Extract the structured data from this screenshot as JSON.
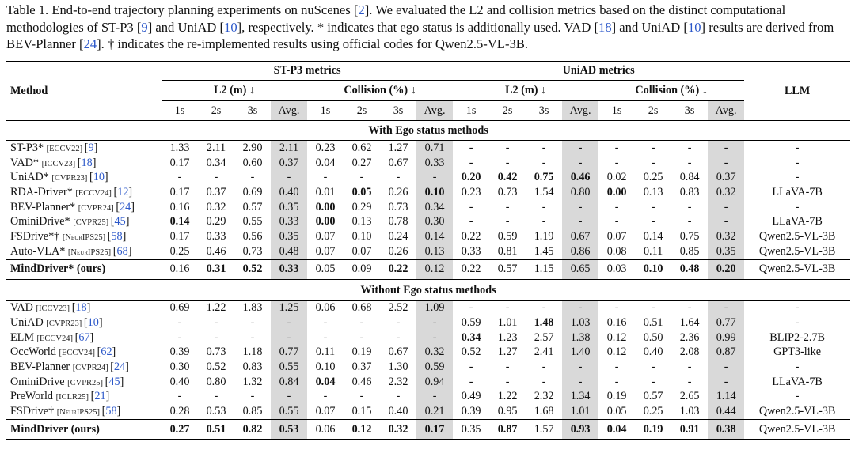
{
  "caption": {
    "parts": [
      {
        "t": "Table 1.  End-to-end trajectory planning experiments on nuScenes ["
      },
      {
        "t": "2",
        "hl": true
      },
      {
        "t": "].  We evaluated the L2 and collision metrics based on the distinct computational methodologies of ST-P3 ["
      },
      {
        "t": "9",
        "hl": true
      },
      {
        "t": "] and UniAD ["
      },
      {
        "t": "10",
        "hl": true
      },
      {
        "t": "], respectively. * indicates that ego status is additionally used.  VAD ["
      },
      {
        "t": "18",
        "hl": true
      },
      {
        "t": "] and UniAD ["
      },
      {
        "t": "10",
        "hl": true
      },
      {
        "t": "] results are derived from BEV-Planner ["
      },
      {
        "t": "24",
        "hl": true
      },
      {
        "t": "]. † indicates the re-implemented results using official codes for Qwen2.5-VL-3B."
      }
    ]
  },
  "header": {
    "method": "Method",
    "llm": "LLM",
    "stp3": "ST-P3 metrics",
    "uniad": "UniAD metrics",
    "l2": "L2 (m) ↓",
    "collision": "Collision (%) ↓",
    "cols": [
      "1s",
      "2s",
      "3s",
      "Avg.",
      "1s",
      "2s",
      "3s",
      "Avg.",
      "1s",
      "2s",
      "3s",
      "Avg.",
      "1s",
      "2s",
      "3s",
      "Avg."
    ]
  },
  "sections": [
    {
      "title": "With Ego status methods",
      "rows": [
        {
          "name": "ST-P3*",
          "venue": "[ECCV22]",
          "ref": "9",
          "vals": [
            "1.33",
            "2.11",
            "2.90",
            "2.11",
            "0.23",
            "0.62",
            "1.27",
            "0.71",
            "-",
            "-",
            "-",
            "-",
            "-",
            "-",
            "-",
            "-"
          ],
          "bold": [],
          "llm": "-"
        },
        {
          "name": "VAD*",
          "venue": "[ICCV23]",
          "ref": "18",
          "vals": [
            "0.17",
            "0.34",
            "0.60",
            "0.37",
            "0.04",
            "0.27",
            "0.67",
            "0.33",
            "-",
            "-",
            "-",
            "-",
            "-",
            "-",
            "-",
            "-"
          ],
          "bold": [],
          "llm": "-"
        },
        {
          "name": "UniAD*",
          "venue": "[CVPR23]",
          "ref": "10",
          "vals": [
            "-",
            "-",
            "-",
            "-",
            "-",
            "-",
            "-",
            "-",
            "0.20",
            "0.42",
            "0.75",
            "0.46",
            "0.02",
            "0.25",
            "0.84",
            "0.37"
          ],
          "bold": [
            8,
            9,
            10,
            11
          ],
          "llm": "-"
        },
        {
          "name": "RDA-Driver*",
          "venue": "[ECCV24]",
          "ref": "12",
          "vals": [
            "0.17",
            "0.37",
            "0.69",
            "0.40",
            "0.01",
            "0.05",
            "0.26",
            "0.10",
            "0.23",
            "0.73",
            "1.54",
            "0.80",
            "0.00",
            "0.13",
            "0.83",
            "0.32"
          ],
          "bold": [
            5,
            7,
            12
          ],
          "llm": "LLaVA-7B"
        },
        {
          "name": "BEV-Planner*",
          "venue": "[CVPR24]",
          "ref": "24",
          "vals": [
            "0.16",
            "0.32",
            "0.57",
            "0.35",
            "0.00",
            "0.29",
            "0.73",
            "0.34",
            "-",
            "-",
            "-",
            "-",
            "-",
            "-",
            "-",
            "-"
          ],
          "bold": [
            4
          ],
          "llm": "-"
        },
        {
          "name": "OminiDrive*",
          "venue": "[CVPR25]",
          "ref": "45",
          "vals": [
            "0.14",
            "0.29",
            "0.55",
            "0.33",
            "0.00",
            "0.13",
            "0.78",
            "0.30",
            "-",
            "-",
            "-",
            "-",
            "-",
            "-",
            "-",
            "-"
          ],
          "bold": [
            0,
            4
          ],
          "llm": "LLaVA-7B"
        },
        {
          "name": "FSDrive*†",
          "venue": "[NeurIPS25]",
          "ref": "58",
          "vals": [
            "0.17",
            "0.33",
            "0.56",
            "0.35",
            "0.07",
            "0.10",
            "0.24",
            "0.14",
            "0.22",
            "0.59",
            "1.19",
            "0.67",
            "0.07",
            "0.14",
            "0.75",
            "0.32"
          ],
          "bold": [],
          "llm": "Qwen2.5-VL-3B"
        },
        {
          "name": "Auto-VLA*",
          "venue": "[NeurIPS25]",
          "ref": "68",
          "vals": [
            "0.25",
            "0.46",
            "0.73",
            "0.48",
            "0.07",
            "0.07",
            "0.26",
            "0.13",
            "0.33",
            "0.81",
            "1.45",
            "0.86",
            "0.08",
            "0.11",
            "0.85",
            "0.35"
          ],
          "bold": [],
          "llm": "Qwen2.5-VL-3B"
        }
      ],
      "ours": {
        "name": "MindDriver* (ours)",
        "vals": [
          "0.16",
          "0.31",
          "0.52",
          "0.33",
          "0.05",
          "0.09",
          "0.22",
          "0.12",
          "0.22",
          "0.57",
          "1.15",
          "0.65",
          "0.03",
          "0.10",
          "0.48",
          "0.20"
        ],
        "bold": [
          1,
          2,
          3,
          6,
          13,
          14,
          15
        ],
        "llm": "Qwen2.5-VL-3B"
      }
    },
    {
      "title": "Without Ego status methods",
      "rows": [
        {
          "name": "VAD",
          "venue": "[ICCV23]",
          "ref": "18",
          "vals": [
            "0.69",
            "1.22",
            "1.83",
            "1.25",
            "0.06",
            "0.68",
            "2.52",
            "1.09",
            "-",
            "-",
            "-",
            "-",
            "-",
            "-",
            "-",
            "-"
          ],
          "bold": [],
          "llm": "-"
        },
        {
          "name": "UniAD",
          "venue": "[CVPR23]",
          "ref": "10",
          "vals": [
            "-",
            "-",
            "-",
            "-",
            "-",
            "-",
            "-",
            "-",
            "0.59",
            "1.01",
            "1.48",
            "1.03",
            "0.16",
            "0.51",
            "1.64",
            "0.77"
          ],
          "bold": [
            10
          ],
          "llm": "-"
        },
        {
          "name": "ELM",
          "venue": "[ECCV24]",
          "ref": "67",
          "vals": [
            "-",
            "-",
            "-",
            "-",
            "-",
            "-",
            "-",
            "-",
            "0.34",
            "1.23",
            "2.57",
            "1.38",
            "0.12",
            "0.50",
            "2.36",
            "0.99"
          ],
          "bold": [
            8
          ],
          "llm": "BLIP2-2.7B"
        },
        {
          "name": "OccWorld",
          "venue": "[ECCV24]",
          "ref": "62",
          "vals": [
            "0.39",
            "0.73",
            "1.18",
            "0.77",
            "0.11",
            "0.19",
            "0.67",
            "0.32",
            "0.52",
            "1.27",
            "2.41",
            "1.40",
            "0.12",
            "0.40",
            "2.08",
            "0.87"
          ],
          "bold": [],
          "llm": "GPT3-like"
        },
        {
          "name": "BEV-Planner",
          "venue": "[CVPR24]",
          "ref": "24",
          "vals": [
            "0.30",
            "0.52",
            "0.83",
            "0.55",
            "0.10",
            "0.37",
            "1.30",
            "0.59",
            "-",
            "-",
            "-",
            "-",
            "-",
            "-",
            "-",
            "-"
          ],
          "bold": [],
          "llm": "-"
        },
        {
          "name": "OminiDrive",
          "venue": "[CVPR25]",
          "ref": "45",
          "vals": [
            "0.40",
            "0.80",
            "1.32",
            "0.84",
            "0.04",
            "0.46",
            "2.32",
            "0.94",
            "-",
            "-",
            "-",
            "-",
            "-",
            "-",
            "-",
            "-"
          ],
          "bold": [
            4
          ],
          "llm": "LLaVA-7B"
        },
        {
          "name": "PreWorld",
          "venue": "[ICLR25]",
          "ref": "21",
          "vals": [
            "-",
            "-",
            "-",
            "-",
            "-",
            "-",
            "-",
            "-",
            "0.49",
            "1.22",
            "2.32",
            "1.34",
            "0.19",
            "0.57",
            "2.65",
            "1.14"
          ],
          "bold": [],
          "llm": "-"
        },
        {
          "name": "FSDrive†",
          "venue": "[NeurIPS25]",
          "ref": "58",
          "vals": [
            "0.28",
            "0.53",
            "0.85",
            "0.55",
            "0.07",
            "0.15",
            "0.40",
            "0.21",
            "0.39",
            "0.95",
            "1.68",
            "1.01",
            "0.05",
            "0.25",
            "1.03",
            "0.44"
          ],
          "bold": [],
          "llm": "Qwen2.5-VL-3B"
        }
      ],
      "ours": {
        "name": "MindDriver (ours)",
        "vals": [
          "0.27",
          "0.51",
          "0.82",
          "0.53",
          "0.06",
          "0.12",
          "0.32",
          "0.17",
          "0.35",
          "0.87",
          "1.57",
          "0.93",
          "0.04",
          "0.19",
          "0.91",
          "0.38"
        ],
        "bold": [
          0,
          1,
          2,
          3,
          5,
          6,
          7,
          9,
          11,
          12,
          13,
          14,
          15
        ],
        "llm": "Qwen2.5-VL-3B"
      }
    }
  ]
}
